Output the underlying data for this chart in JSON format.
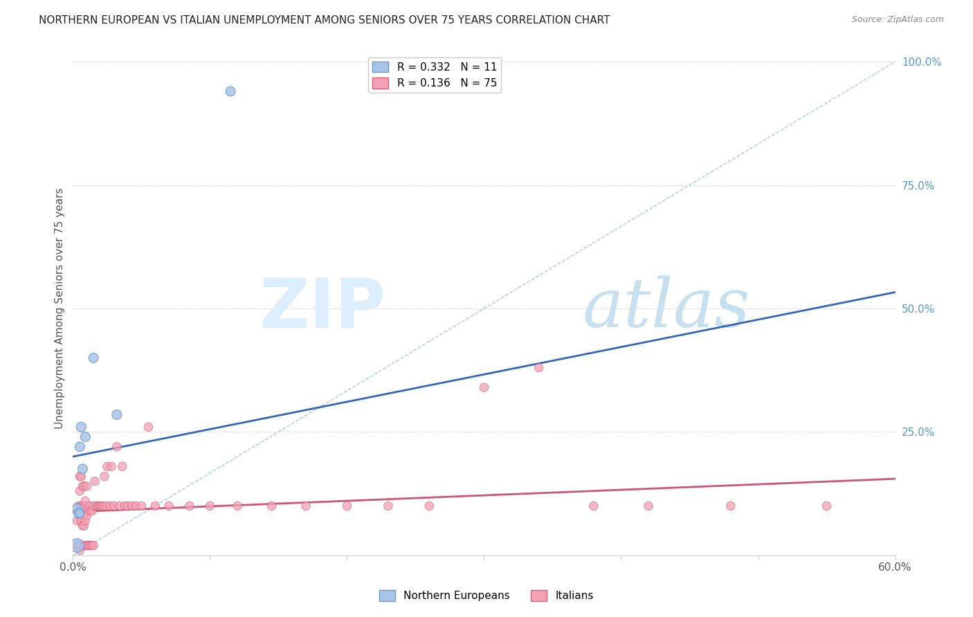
{
  "title": "NORTHERN EUROPEAN VS ITALIAN UNEMPLOYMENT AMONG SENIORS OVER 75 YEARS CORRELATION CHART",
  "source": "Source: ZipAtlas.com",
  "ylabel": "Unemployment Among Seniors over 75 years",
  "xmin": 0.0,
  "xmax": 0.6,
  "ymin": 0.0,
  "ymax": 1.0,
  "x_ticks": [
    0.0,
    0.1,
    0.2,
    0.3,
    0.4,
    0.5,
    0.6
  ],
  "x_tick_labels": [
    "0.0%",
    "",
    "",
    "",
    "",
    "",
    "60.0%"
  ],
  "y_ticks_right": [
    0.0,
    0.25,
    0.5,
    0.75,
    1.0
  ],
  "y_tick_labels_right": [
    "",
    "25.0%",
    "50.0%",
    "75.0%",
    "100.0%"
  ],
  "ne_color": "#aac4e8",
  "ne_edge_color": "#6699cc",
  "it_color": "#f4a0b5",
  "it_edge_color": "#d4607a",
  "ne_line_color": "#3366bb",
  "it_line_color": "#cc5577",
  "diag_line_color": "#aaccdd",
  "grid_color": "#dddddd",
  "title_color": "#222222",
  "source_color": "#888888",
  "right_axis_color": "#5599cc",
  "watermark_zip": "ZIP",
  "watermark_atlas": "atlas",
  "watermark_color": "#ddeeff",
  "ne_line_x0": 0.0,
  "ne_line_y0": 0.2,
  "ne_line_x1": 0.6,
  "ne_line_y1": 0.533,
  "it_line_x0": 0.0,
  "it_line_y0": 0.088,
  "it_line_x1": 0.6,
  "it_line_y1": 0.155,
  "northern_europeans_x": [
    0.003,
    0.003,
    0.004,
    0.005,
    0.005,
    0.006,
    0.007,
    0.009,
    0.015,
    0.032,
    0.115
  ],
  "northern_europeans_y": [
    0.02,
    0.095,
    0.085,
    0.085,
    0.22,
    0.26,
    0.175,
    0.24,
    0.4,
    0.285,
    0.94
  ],
  "ne_sizes": [
    200,
    100,
    100,
    80,
    100,
    100,
    100,
    100,
    100,
    100,
    100
  ],
  "italians_x": [
    0.003,
    0.003,
    0.004,
    0.004,
    0.005,
    0.005,
    0.005,
    0.005,
    0.005,
    0.006,
    0.006,
    0.006,
    0.006,
    0.007,
    0.007,
    0.007,
    0.007,
    0.008,
    0.008,
    0.008,
    0.008,
    0.009,
    0.009,
    0.009,
    0.01,
    0.01,
    0.01,
    0.011,
    0.011,
    0.012,
    0.012,
    0.013,
    0.013,
    0.014,
    0.014,
    0.015,
    0.015,
    0.016,
    0.017,
    0.018,
    0.019,
    0.02,
    0.021,
    0.022,
    0.023,
    0.024,
    0.025,
    0.027,
    0.028,
    0.03,
    0.032,
    0.034,
    0.036,
    0.038,
    0.04,
    0.043,
    0.046,
    0.05,
    0.055,
    0.06,
    0.07,
    0.085,
    0.1,
    0.12,
    0.145,
    0.17,
    0.2,
    0.23,
    0.26,
    0.3,
    0.34,
    0.38,
    0.42,
    0.48,
    0.55
  ],
  "italians_y": [
    0.02,
    0.07,
    0.02,
    0.1,
    0.01,
    0.02,
    0.08,
    0.13,
    0.16,
    0.02,
    0.07,
    0.1,
    0.16,
    0.02,
    0.06,
    0.1,
    0.14,
    0.02,
    0.06,
    0.1,
    0.14,
    0.02,
    0.07,
    0.11,
    0.02,
    0.08,
    0.14,
    0.02,
    0.09,
    0.02,
    0.1,
    0.02,
    0.09,
    0.02,
    0.09,
    0.02,
    0.1,
    0.15,
    0.1,
    0.1,
    0.1,
    0.1,
    0.1,
    0.1,
    0.16,
    0.1,
    0.18,
    0.1,
    0.18,
    0.1,
    0.22,
    0.1,
    0.18,
    0.1,
    0.1,
    0.1,
    0.1,
    0.1,
    0.26,
    0.1,
    0.1,
    0.1,
    0.1,
    0.1,
    0.1,
    0.1,
    0.1,
    0.1,
    0.1,
    0.34,
    0.38,
    0.1,
    0.1,
    0.1,
    0.1
  ],
  "it_sizes": [
    80,
    80,
    80,
    80,
    80,
    80,
    80,
    80,
    80,
    80,
    80,
    80,
    80,
    80,
    80,
    80,
    80,
    80,
    80,
    80,
    80,
    80,
    80,
    80,
    80,
    80,
    80,
    80,
    80,
    80,
    80,
    80,
    80,
    80,
    80,
    80,
    80,
    80,
    80,
    80,
    80,
    80,
    80,
    80,
    80,
    80,
    80,
    80,
    80,
    80,
    80,
    80,
    80,
    80,
    80,
    80,
    80,
    80,
    80,
    80,
    80,
    80,
    80,
    80,
    80,
    80,
    80,
    80,
    80,
    80,
    80,
    80,
    80,
    80,
    80
  ]
}
